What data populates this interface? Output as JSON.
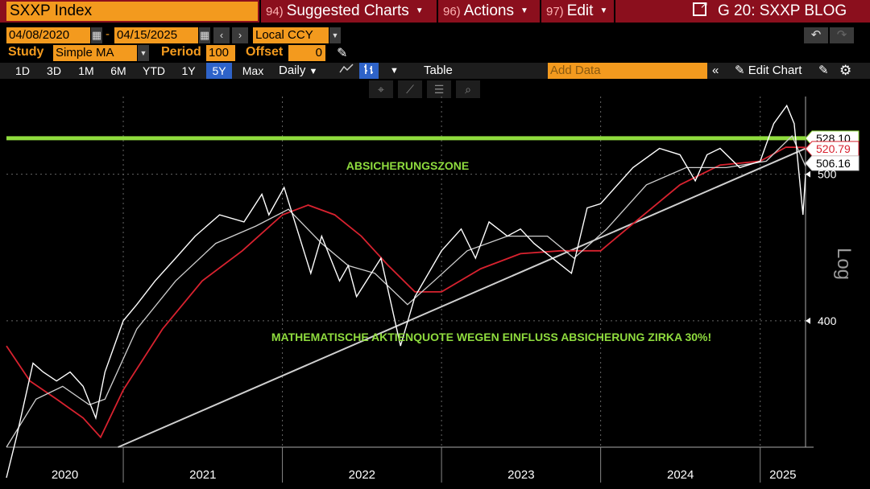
{
  "toolbar": {
    "ticker": "SXXP Index",
    "menus": [
      {
        "num": "94)",
        "label": "Suggested Charts"
      },
      {
        "num": "96)",
        "label": "Actions"
      },
      {
        "num": "97)",
        "label": "Edit"
      }
    ],
    "launchpad": "G 20: SXXP BLOG"
  },
  "range": {
    "start": "04/08/2020",
    "dash": "-",
    "end": "04/15/2025",
    "currency": "Local CCY"
  },
  "study": {
    "label": "Study",
    "value": "Simple MA",
    "period_label": "Period",
    "period_value": "100",
    "offset_label": "Offset",
    "offset_value": "0"
  },
  "timeframes": [
    "1D",
    "3D",
    "1M",
    "6M",
    "YTD",
    "1Y",
    "5Y",
    "Max"
  ],
  "active_timeframe": "5Y",
  "frequency": "Daily",
  "table_label": "Table",
  "add_data_placeholder": "Add Data",
  "edit_chart_label": "Edit Chart",
  "colors": {
    "accent": "#f39a1e",
    "menubar": "#8b0f1d",
    "hedge_line": "#8fdc3e",
    "ma_red": "#d8222f",
    "price": "#ffffff",
    "ma_grey": "#cfcfcf"
  },
  "chart_data": {
    "type": "line",
    "scale": "log",
    "ylim": [
      330,
      560
    ],
    "xlim": [
      "2020-04-08",
      "2025-04-15"
    ],
    "yticks": [
      "400",
      "500"
    ],
    "xticks": [
      "2020",
      "2021",
      "2022",
      "2023",
      "2024",
      "2025"
    ],
    "axis_label": "Log",
    "last_values": [
      "528.10",
      "520.79",
      "506.16"
    ],
    "annotations": [
      "ABSICHERUNGSZONE",
      "MATHEMATISCHE AKTIENQUOTE WEGEN EINFLUSS ABSICHERUNG ZIRKA 30%!"
    ],
    "hedge_level": 528.1,
    "trendline": [
      {
        "date": "2020-12-20",
        "value": 330
      },
      {
        "date": "2025-04-15",
        "value": 520
      }
    ],
    "series": [
      {
        "key": "price",
        "x": [
          "2020-04-08",
          "2020-05-01",
          "2020-06-08",
          "2020-07-01",
          "2020-08-01",
          "2020-09-01",
          "2020-10-01",
          "2020-10-30",
          "2020-11-20",
          "2021-01-01",
          "2021-02-01",
          "2021-03-15",
          "2021-05-01",
          "2021-06-15",
          "2021-08-10",
          "2021-10-05",
          "2021-11-15",
          "2021-12-01",
          "2022-01-05",
          "2022-03-07",
          "2022-04-01",
          "2022-05-12",
          "2022-06-01",
          "2022-06-20",
          "2022-08-15",
          "2022-09-29",
          "2022-11-01",
          "2023-01-01",
          "2023-02-15",
          "2023-03-20",
          "2023-04-20",
          "2023-06-01",
          "2023-07-01",
          "2023-08-01",
          "2023-10-26",
          "2023-12-01",
          "2024-01-01",
          "2024-03-15",
          "2024-05-15",
          "2024-07-01",
          "2024-08-05",
          "2024-09-01",
          "2024-10-01",
          "2024-11-15",
          "2025-01-01",
          "2025-02-01",
          "2025-03-03",
          "2025-03-20",
          "2025-04-09",
          "2025-04-15"
        ],
        "y": [
          315,
          335,
          375,
          370,
          365,
          370,
          362,
          345,
          370,
          400,
          410,
          425,
          440,
          455,
          470,
          465,
          485,
          470,
          490,
          430,
          455,
          425,
          435,
          415,
          440,
          385,
          415,
          445,
          460,
          440,
          465,
          455,
          460,
          450,
          430,
          475,
          478,
          505,
          520,
          515,
          495,
          515,
          520,
          505,
          510,
          540,
          555,
          540,
          470,
          500
        ]
      },
      {
        "key": "ma100",
        "x": [
          "2020-04-08",
          "2020-06-01",
          "2020-08-01",
          "2020-10-01",
          "2020-11-10",
          "2021-01-01",
          "2021-04-01",
          "2021-07-01",
          "2021-10-01",
          "2022-01-01",
          "2022-03-01",
          "2022-05-01",
          "2022-07-01",
          "2022-09-01",
          "2022-11-01",
          "2023-01-01",
          "2023-04-01",
          "2023-07-01",
          "2023-10-01",
          "2024-01-01",
          "2024-04-01",
          "2024-07-01",
          "2024-10-01",
          "2025-01-01",
          "2025-03-01",
          "2025-04-15"
        ],
        "y": [
          385,
          365,
          355,
          345,
          335,
          360,
          395,
          425,
          445,
          470,
          477,
          470,
          455,
          435,
          418,
          418,
          433,
          443,
          445,
          445,
          468,
          492,
          507,
          510,
          521,
          520.79
        ]
      },
      {
        "key": "ma50",
        "x": [
          "2020-04-08",
          "2020-06-15",
          "2020-08-15",
          "2020-10-15",
          "2020-11-20",
          "2021-02-01",
          "2021-05-01",
          "2021-08-01",
          "2021-11-01",
          "2022-01-15",
          "2022-04-01",
          "2022-06-01",
          "2022-08-01",
          "2022-10-15",
          "2022-12-15",
          "2023-03-01",
          "2023-06-01",
          "2023-09-01",
          "2023-11-01",
          "2024-01-15",
          "2024-04-15",
          "2024-07-15",
          "2024-10-15",
          "2025-01-15",
          "2025-03-15",
          "2025-04-15"
        ],
        "y": [
          330,
          355,
          362,
          352,
          355,
          395,
          425,
          450,
          462,
          474,
          450,
          435,
          430,
          410,
          425,
          445,
          455,
          455,
          440,
          460,
          492,
          505,
          505,
          510,
          530,
          506.16
        ]
      }
    ]
  }
}
